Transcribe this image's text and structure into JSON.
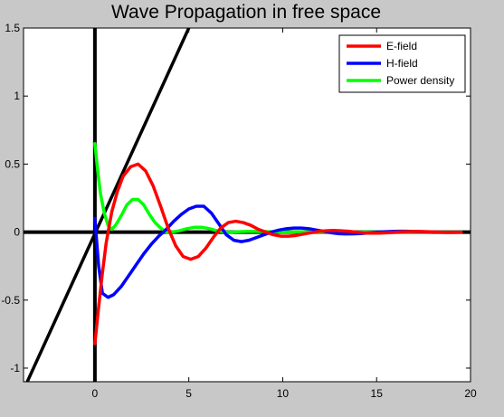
{
  "figure": {
    "background": "#c8c8c8",
    "axes_background": "#ffffff"
  },
  "chart_data": {
    "type": "line",
    "title": "Wave Propagation in free space",
    "xlabel": "",
    "ylabel": "",
    "xlim": [
      -3.8,
      20
    ],
    "ylim": [
      -1.1,
      1.5
    ],
    "xticks": [
      0,
      5,
      10,
      15,
      20
    ],
    "yticks": [
      -1,
      -0.5,
      0,
      0.5,
      1,
      1.5
    ],
    "xtick_labels": [
      "0",
      "5",
      "10",
      "15",
      "20"
    ],
    "ytick_labels": [
      "-1",
      "-0.5",
      "0",
      "0.5",
      "1",
      "1.5"
    ],
    "grid": false,
    "legend_position": "top-right",
    "series": [
      {
        "name": "E-field",
        "color": "#ff0000",
        "x": [
          0,
          0.2,
          0.4,
          0.6,
          0.9,
          1.2,
          1.5,
          1.9,
          2.3,
          2.7,
          3.1,
          3.5,
          3.9,
          4.3,
          4.7,
          5.1,
          5.5,
          5.9,
          6.3,
          6.7,
          7.1,
          7.5,
          7.9,
          8.3,
          8.7,
          9.1,
          9.5,
          9.9,
          10.3,
          10.7,
          11.1,
          11.5,
          11.9,
          12.3,
          12.7,
          13.1,
          13.5,
          13.9,
          14.3,
          14.7,
          15.1,
          15.5,
          15.9,
          16.3,
          16.7,
          17.1,
          17.5,
          17.9,
          18.3,
          18.7,
          19.1,
          19.5
        ],
        "y": [
          -0.82,
          -0.55,
          -0.3,
          -0.08,
          0.15,
          0.3,
          0.41,
          0.48,
          0.5,
          0.45,
          0.34,
          0.19,
          0.03,
          -0.1,
          -0.18,
          -0.2,
          -0.18,
          -0.12,
          -0.04,
          0.03,
          0.07,
          0.08,
          0.07,
          0.05,
          0.02,
          0.0,
          -0.02,
          -0.03,
          -0.03,
          -0.025,
          -0.015,
          -0.005,
          0.005,
          0.01,
          0.012,
          0.01,
          0.006,
          0.0,
          -0.006,
          -0.008,
          -0.008,
          -0.005,
          -0.002,
          0.002,
          0.004,
          0.005,
          0.004,
          0.002,
          0.0,
          -0.002,
          -0.002,
          -0.002
        ]
      },
      {
        "name": "H-field",
        "color": "#0000ff",
        "x": [
          0,
          0.2,
          0.4,
          0.7,
          1.0,
          1.4,
          1.8,
          2.2,
          2.6,
          3.0,
          3.4,
          3.8,
          4.2,
          4.6,
          5.0,
          5.4,
          5.8,
          6.2,
          6.6,
          7.0,
          7.4,
          7.8,
          8.2,
          8.6,
          9.0,
          9.4,
          9.8,
          10.2,
          10.6,
          11.0,
          11.4,
          11.8,
          12.2,
          12.6,
          13.0,
          13.4,
          13.8,
          14.2,
          14.6,
          15.0,
          15.4,
          15.8,
          16.2,
          16.6,
          17.0,
          17.4,
          17.8,
          18.2,
          18.6,
          19.0,
          19.4
        ],
        "y": [
          0.1,
          -0.25,
          -0.45,
          -0.48,
          -0.46,
          -0.4,
          -0.32,
          -0.24,
          -0.16,
          -0.09,
          -0.03,
          0.02,
          0.08,
          0.13,
          0.17,
          0.19,
          0.19,
          0.14,
          0.06,
          -0.02,
          -0.06,
          -0.07,
          -0.06,
          -0.04,
          -0.02,
          0.0,
          0.015,
          0.025,
          0.03,
          0.03,
          0.025,
          0.015,
          0.005,
          -0.005,
          -0.012,
          -0.014,
          -0.013,
          -0.01,
          -0.006,
          -0.002,
          0.002,
          0.005,
          0.006,
          0.006,
          0.005,
          0.003,
          0.001,
          -0.001,
          -0.002,
          -0.002,
          -0.001
        ]
      },
      {
        "name": "Power density",
        "color": "#00ff00",
        "x": [
          0,
          0.15,
          0.3,
          0.5,
          0.7,
          0.9,
          1.1,
          1.4,
          1.7,
          2.0,
          2.3,
          2.6,
          2.9,
          3.2,
          3.5,
          3.8,
          4.1,
          4.5,
          4.9,
          5.3,
          5.7,
          6.1,
          6.5,
          6.9,
          7.3,
          7.7,
          8.1,
          8.5,
          9.0,
          9.5,
          10.0,
          11.0,
          12.0,
          13.0,
          14.0,
          15.0,
          16.0,
          17.0,
          18.0,
          19.0,
          19.5
        ],
        "y": [
          0.65,
          0.45,
          0.28,
          0.14,
          0.05,
          0.02,
          0.05,
          0.12,
          0.2,
          0.24,
          0.24,
          0.2,
          0.13,
          0.07,
          0.03,
          0.0,
          0.0,
          0.01,
          0.025,
          0.035,
          0.035,
          0.025,
          0.01,
          0.0,
          0.0,
          0.003,
          0.005,
          0.005,
          0.004,
          0.002,
          0.0,
          0.001,
          0.0,
          0.0,
          0.0,
          0.0,
          0.0,
          0.0,
          0.0,
          0.0,
          0.0
        ]
      },
      {
        "name": "",
        "color": "#000000",
        "x": [
          -3.6,
          5.0
        ],
        "y": [
          -1.1,
          1.5
        ]
      }
    ]
  }
}
